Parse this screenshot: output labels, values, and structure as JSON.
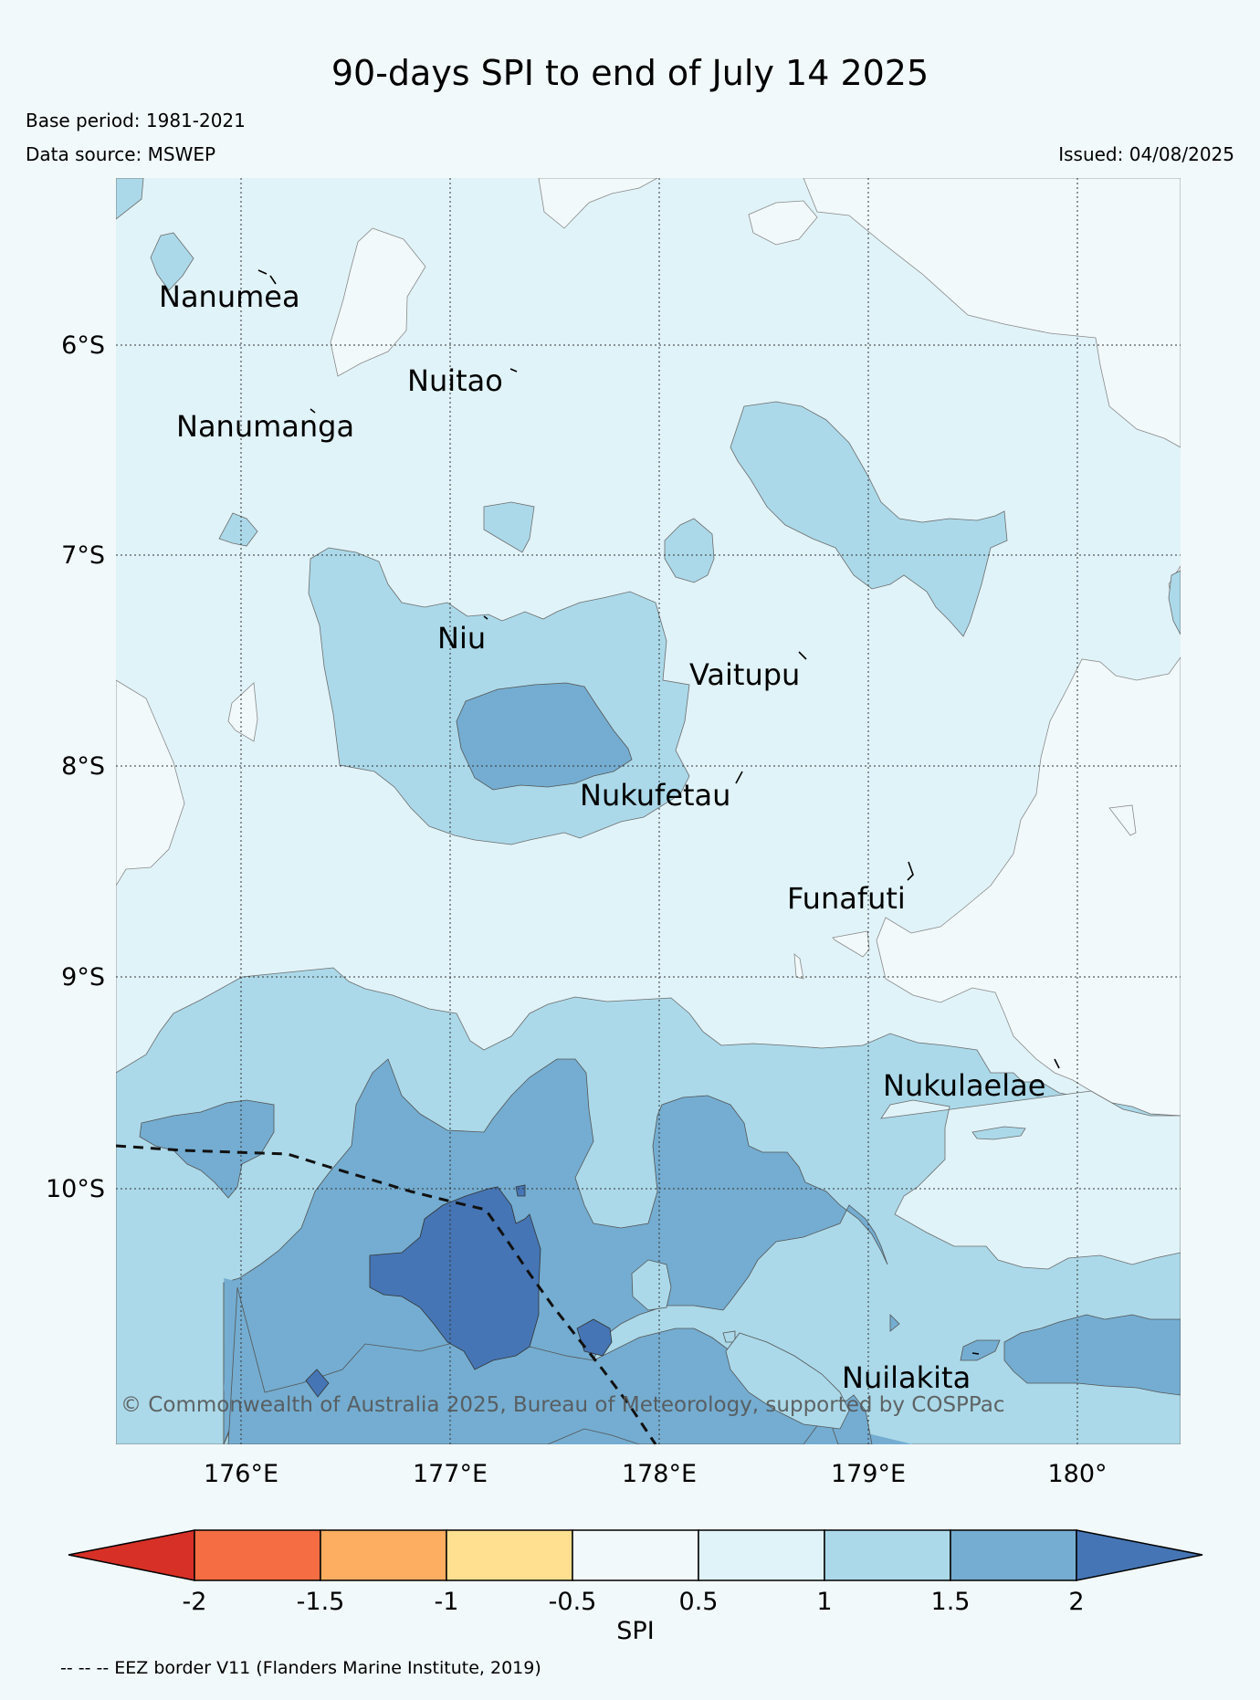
{
  "title": "90-days SPI to end of July 14 2025",
  "base_period": "Base period: 1981-2021",
  "data_source": "Data source: MSWEP",
  "issued": "Issued: 04/08/2025",
  "copyright": "© Commonwealth of Australia 2025, Bureau of Meteorology, supported by COSPPac",
  "footnote": "-- -- -- EEZ border V11 (Flanders Marine Institute, 2019)",
  "map": {
    "lon_range": [
      175.4,
      180.5
    ],
    "lat_range": [
      -11.2,
      -5.2
    ],
    "latitude_labels": [
      "6°S",
      "7°S",
      "8°S",
      "9°S",
      "10°S"
    ],
    "longitude_labels": [
      "176°E",
      "177°E",
      "178°E",
      "179°E",
      "180°"
    ],
    "islands": [
      {
        "name": "Nanumea"
      },
      {
        "name": "Nuitao"
      },
      {
        "name": "Nanumanga"
      },
      {
        "name": "Niu"
      },
      {
        "name": "Vaitupu"
      },
      {
        "name": "Nukufetau"
      },
      {
        "name": "Funafuti"
      },
      {
        "name": "Nukulaelae"
      },
      {
        "name": "Nuilakita"
      }
    ]
  },
  "legend": {
    "title": "SPI",
    "tick_labels": [
      "-2",
      "-1.5",
      "-1",
      "-0.5",
      "0.5",
      "1",
      "1.5",
      "2"
    ],
    "colors": {
      "below_-2": "#d73027",
      "-2_to_-1.5": "#f46d43",
      "-1.5_to_-1": "#fdae61",
      "-1_to_-0.5": "#fee090",
      "-0.5_to_0.5": "#f2f9fb",
      "0.5_to_1": "#e0f3f8",
      "1_to_1.5": "#abd9e9",
      "1.5_to_2": "#74add1",
      "above_2": "#4575b4"
    }
  }
}
